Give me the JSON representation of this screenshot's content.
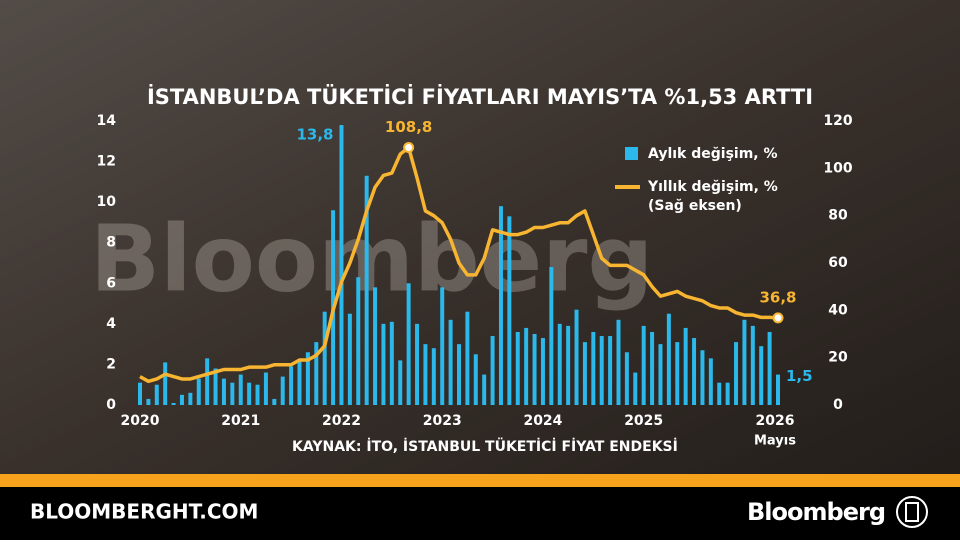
{
  "chart_data": {
    "type": "bar",
    "title": "İSTANBUL’DA TÜKETİCİ FİYATLARI MAYIS’TA %1,53 ARTTI",
    "source": "KAYNAK: İTO, İSTANBUL TÜKETİCİ FİYAT ENDEKSİ",
    "watermark": "Bloomberg",
    "categories": [
      "2020",
      null,
      null,
      null,
      null,
      null,
      null,
      null,
      null,
      null,
      null,
      null,
      "2021",
      null,
      null,
      null,
      null,
      null,
      null,
      null,
      null,
      null,
      null,
      null,
      "2022",
      null,
      null,
      null,
      null,
      null,
      null,
      null,
      null,
      null,
      null,
      null,
      "2023",
      null,
      null,
      null,
      null,
      null,
      null,
      null,
      null,
      null,
      null,
      null,
      "2024",
      null,
      null,
      null,
      null,
      null,
      null,
      null,
      null,
      null,
      null,
      null,
      "2025",
      null,
      null,
      null,
      null,
      null,
      null,
      null,
      null,
      null,
      null,
      null,
      "2026",
      null,
      null,
      null,
      null
    ],
    "x_note": "Mayıs",
    "series": [
      {
        "name": "Aylık değişim, %",
        "type": "bar",
        "color": "#2bb8ea",
        "values": [
          1.1,
          0.3,
          1.0,
          2.1,
          0.1,
          0.5,
          0.6,
          1.3,
          2.3,
          1.8,
          1.3,
          1.1,
          1.5,
          1.1,
          1.0,
          1.6,
          0.3,
          1.4,
          1.9,
          2.2,
          2.6,
          3.1,
          4.6,
          9.6,
          13.8,
          4.5,
          6.3,
          11.3,
          5.8,
          4.0,
          4.1,
          2.2,
          6.0,
          4.0,
          3.0,
          2.8,
          5.8,
          4.2,
          3.0,
          4.6,
          2.5,
          1.5,
          3.4,
          9.8,
          9.3,
          3.6,
          3.8,
          3.5,
          3.3,
          6.8,
          4.0,
          3.9,
          4.7,
          3.1,
          3.6,
          3.4,
          3.4,
          4.2,
          2.6,
          1.6,
          3.9,
          3.6,
          3.0,
          4.5,
          3.1,
          3.8,
          3.3,
          2.7,
          2.3,
          1.1,
          1.1,
          3.1,
          4.2,
          3.9,
          2.9,
          3.6,
          1.5
        ],
        "value_labels": [
          null,
          null,
          null,
          null,
          null,
          null,
          null,
          null,
          null,
          null,
          null,
          null,
          null,
          null,
          null,
          null,
          null,
          null,
          null,
          null,
          null,
          null,
          null,
          null,
          "13,8",
          null,
          null,
          null,
          null,
          null,
          null,
          null,
          null,
          null,
          null,
          null,
          null,
          null,
          null,
          null,
          null,
          null,
          null,
          null,
          null,
          null,
          null,
          null,
          null,
          null,
          null,
          null,
          null,
          null,
          null,
          null,
          null,
          null,
          null,
          null,
          null,
          null,
          null,
          null,
          null,
          null,
          null,
          null,
          null,
          null,
          null,
          null,
          null,
          null,
          null,
          null,
          "1,5"
        ]
      },
      {
        "name": "Yıllık değişim, %",
        "note": "(Sağ eksen)",
        "type": "line",
        "axis": "y2",
        "color": "#f7b531",
        "values": [
          12,
          10,
          11,
          13,
          12,
          11,
          11,
          12,
          13,
          14,
          15,
          15,
          15,
          16,
          16,
          16,
          17,
          17,
          17,
          19,
          19,
          21,
          25,
          40,
          52,
          60,
          70,
          82,
          92,
          97,
          98,
          106,
          108.8,
          96,
          82,
          80,
          77,
          70,
          60,
          55,
          55,
          62,
          74,
          73,
          72,
          72,
          73,
          75,
          75,
          76,
          77,
          77,
          80,
          82,
          72,
          62,
          59,
          59,
          59,
          57,
          55,
          50,
          46,
          47,
          48,
          46,
          45,
          44,
          42,
          41,
          41,
          39,
          38,
          38,
          37,
          37,
          36.8
        ],
        "value_labels": [
          null,
          null,
          null,
          null,
          null,
          null,
          null,
          null,
          null,
          null,
          null,
          null,
          null,
          null,
          null,
          null,
          null,
          null,
          null,
          null,
          null,
          null,
          null,
          null,
          null,
          null,
          null,
          null,
          null,
          null,
          null,
          null,
          "108,8",
          null,
          null,
          null,
          null,
          null,
          null,
          null,
          null,
          null,
          null,
          null,
          null,
          null,
          null,
          null,
          null,
          null,
          null,
          null,
          null,
          null,
          null,
          null,
          null,
          null,
          null,
          null,
          null,
          null,
          null,
          null,
          null,
          null,
          null,
          null,
          null,
          null,
          null,
          null,
          null,
          null,
          null,
          null,
          "36,8"
        ]
      }
    ],
    "ylim": [
      0,
      14
    ],
    "yticks": [
      0,
      2,
      4,
      6,
      8,
      10,
      12,
      14
    ],
    "y2lim": [
      0,
      120
    ],
    "y2ticks": [
      0,
      20,
      40,
      60,
      80,
      100,
      120
    ]
  },
  "footer": {
    "site": "BLOOMBERGHT.COM",
    "brand": "Bloomberg"
  }
}
